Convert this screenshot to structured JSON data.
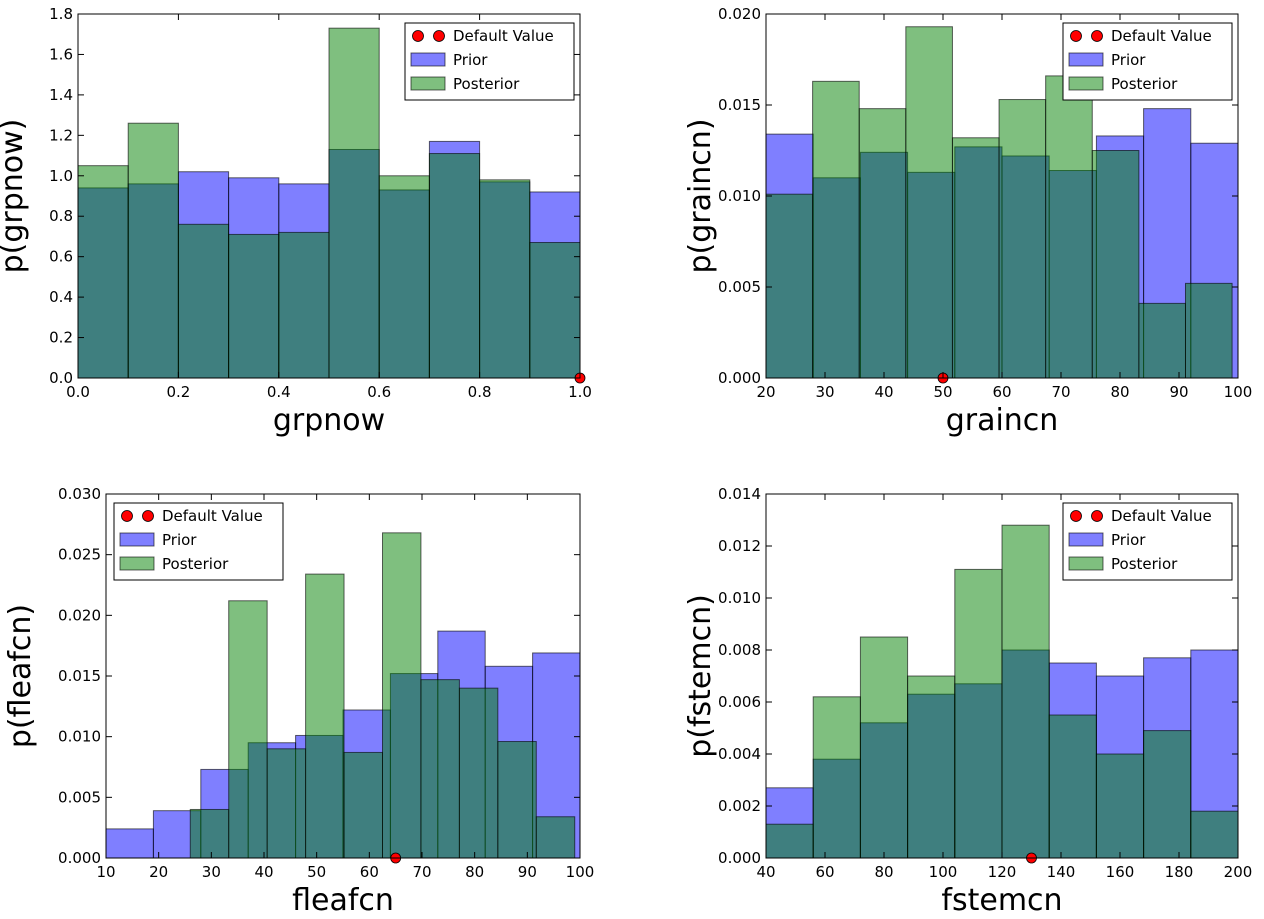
{
  "colors": {
    "prior": "#0000ff",
    "posterior": "#008000",
    "default_marker": "#ff0000",
    "overlap_hint": "#3f7f7f"
  },
  "legend_labels": {
    "default": "Default Value",
    "prior": "Prior",
    "posterior": "Posterior"
  },
  "chart_data": [
    {
      "type": "bar",
      "xlabel": "grpnow",
      "ylabel": "p(grpnow)",
      "xlim": [
        0,
        1
      ],
      "ylim": [
        0,
        1.8
      ],
      "xticks": [
        "0.0",
        "0.2",
        "0.4",
        "0.6",
        "0.8",
        "1.0"
      ],
      "yticks": [
        "0.0",
        "0.2",
        "0.4",
        "0.6",
        "0.8",
        "1.0",
        "1.2",
        "1.4",
        "1.6",
        "1.8"
      ],
      "legend_position": "upper-right",
      "default_value": 1.0,
      "prior": {
        "edges": [
          0,
          0.1,
          0.2,
          0.3,
          0.4,
          0.5,
          0.6,
          0.7,
          0.8,
          0.9,
          1.0
        ],
        "values": [
          0.94,
          0.96,
          1.02,
          0.99,
          0.96,
          1.13,
          0.93,
          1.17,
          0.97,
          0.92
        ]
      },
      "posterior": {
        "edges": [
          0,
          0.1,
          0.2,
          0.3,
          0.4,
          0.5,
          0.6,
          0.7,
          0.8,
          0.9,
          1.0
        ],
        "values": [
          1.05,
          1.26,
          0.76,
          0.71,
          0.72,
          1.73,
          1.0,
          1.11,
          0.98,
          0.67
        ]
      }
    },
    {
      "type": "bar",
      "xlabel": "graincn",
      "ylabel": "p(graincn)",
      "xlim": [
        20,
        100
      ],
      "ylim": [
        0,
        0.02
      ],
      "xticks": [
        "20",
        "30",
        "40",
        "50",
        "60",
        "70",
        "80",
        "90",
        "100"
      ],
      "yticks": [
        "0.000",
        "0.005",
        "0.010",
        "0.015",
        "0.020"
      ],
      "legend_position": "upper-right",
      "default_value": 50,
      "prior": {
        "edges": [
          20,
          28,
          36,
          44,
          52,
          60,
          68,
          76,
          84,
          92,
          100
        ],
        "values": [
          0.0134,
          0.011,
          0.0124,
          0.0113,
          0.0127,
          0.0122,
          0.0114,
          0.0133,
          0.0148,
          0.0129
        ]
      },
      "posterior": {
        "edges": [
          20,
          27.9,
          35.8,
          43.7,
          51.6,
          59.5,
          67.4,
          75.3,
          83.2,
          91.1,
          99.0
        ],
        "values": [
          0.0101,
          0.0163,
          0.0148,
          0.0193,
          0.0132,
          0.0153,
          0.0166,
          0.0125,
          0.0041,
          0.0052
        ]
      }
    },
    {
      "type": "bar",
      "xlabel": "fleafcn",
      "ylabel": "p(fleafcn)",
      "xlim": [
        10,
        100
      ],
      "ylim": [
        0,
        0.03
      ],
      "xticks": [
        "10",
        "20",
        "30",
        "40",
        "50",
        "60",
        "70",
        "80",
        "90",
        "100"
      ],
      "yticks": [
        "0.000",
        "0.005",
        "0.010",
        "0.015",
        "0.020",
        "0.025",
        "0.030"
      ],
      "legend_position": "upper-left",
      "default_value": 65,
      "prior": {
        "edges": [
          10,
          19,
          28,
          37,
          46,
          55,
          64,
          73,
          82,
          91,
          100
        ],
        "values": [
          0.0024,
          0.0039,
          0.0073,
          0.0095,
          0.0101,
          0.0122,
          0.0152,
          0.0187,
          0.0158,
          0.0169
        ]
      },
      "posterior": {
        "edges": [
          26,
          33.3,
          40.6,
          47.9,
          55.2,
          62.5,
          69.8,
          77.1,
          84.4,
          91.7,
          99.0
        ],
        "values": [
          0.004,
          0.0212,
          0.009,
          0.0234,
          0.0087,
          0.0268,
          0.0147,
          0.014,
          0.0096,
          0.0034
        ]
      }
    },
    {
      "type": "bar",
      "xlabel": "fstemcn",
      "ylabel": "p(fstemcn)",
      "xlim": [
        40,
        200
      ],
      "ylim": [
        0,
        0.014
      ],
      "xticks": [
        "40",
        "60",
        "80",
        "100",
        "120",
        "140",
        "160",
        "180",
        "200"
      ],
      "yticks": [
        "0.000",
        "0.002",
        "0.004",
        "0.006",
        "0.008",
        "0.010",
        "0.012",
        "0.014"
      ],
      "legend_position": "upper-right",
      "default_value": 130,
      "prior": {
        "edges": [
          40,
          56,
          72,
          88,
          104,
          120,
          136,
          152,
          168,
          184,
          200
        ],
        "values": [
          0.0027,
          0.0038,
          0.0052,
          0.0063,
          0.0067,
          0.008,
          0.0075,
          0.007,
          0.0077,
          0.008
        ]
      },
      "posterior": {
        "edges": [
          40,
          56,
          72,
          88,
          104,
          120,
          136,
          152,
          168,
          184,
          200
        ],
        "values": [
          0.0013,
          0.0062,
          0.0085,
          0.007,
          0.0111,
          0.0128,
          0.0055,
          0.004,
          0.0049,
          0.0018
        ]
      }
    }
  ]
}
